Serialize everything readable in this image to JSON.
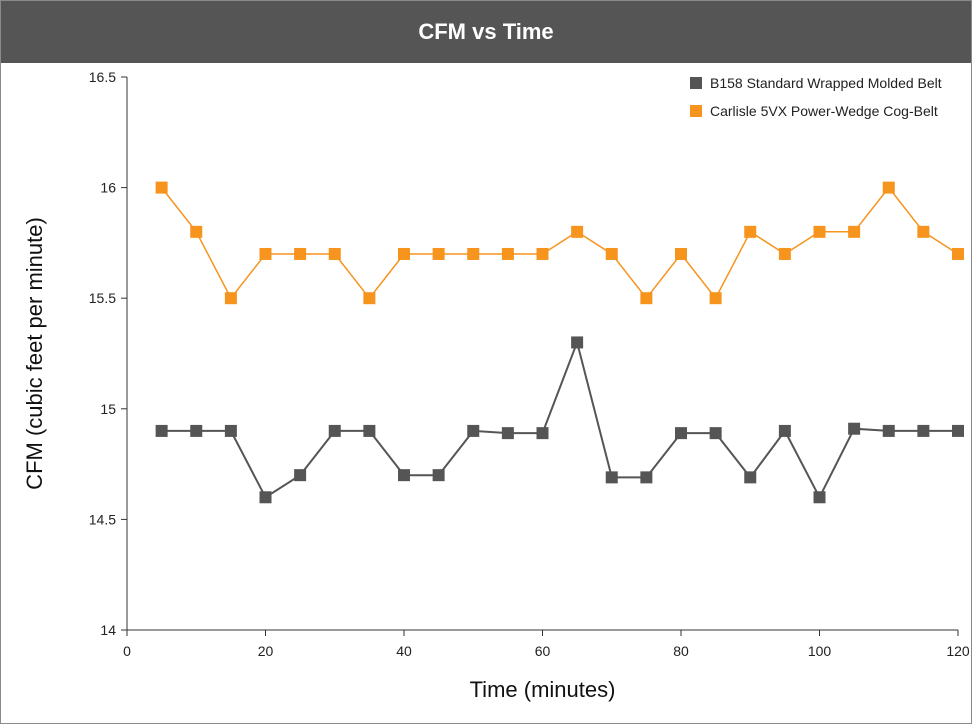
{
  "chart_data": {
    "type": "line",
    "title": "CFM vs Time",
    "xlabel": "Time (minutes)",
    "ylabel": "CFM (cubic feet per minute)",
    "xlim": [
      0,
      120
    ],
    "ylim": [
      14,
      16.5
    ],
    "x_ticks": [
      "0",
      "20",
      "40",
      "60",
      "80",
      "100",
      "120"
    ],
    "y_ticks": [
      "14",
      "14.5",
      "15",
      "15.5",
      "16",
      "16.5"
    ],
    "x_tick_values": [
      0,
      20,
      40,
      60,
      80,
      100,
      120
    ],
    "y_tick_values": [
      14,
      14.5,
      15,
      15.5,
      16,
      16.5
    ],
    "x": [
      5,
      10,
      15,
      20,
      25,
      30,
      35,
      40,
      45,
      50,
      55,
      60,
      65,
      70,
      75,
      80,
      85,
      90,
      95,
      100,
      105,
      110,
      115,
      120
    ],
    "grid": false,
    "legend_position": "top-right",
    "series": [
      {
        "name": "B158 Standard Wrapped Molded Belt",
        "color": "#555555",
        "values": [
          14.9,
          14.9,
          14.9,
          14.6,
          14.7,
          14.9,
          14.9,
          14.7,
          14.7,
          14.9,
          14.89,
          14.89,
          15.3,
          14.69,
          14.69,
          14.89,
          14.89,
          14.69,
          14.9,
          14.6,
          14.91,
          14.9,
          14.9,
          14.9
        ]
      },
      {
        "name": "Carlisle 5VX Power-Wedge Cog-Belt",
        "color": "#f7941d",
        "values": [
          16.0,
          15.8,
          15.5,
          15.7,
          15.7,
          15.7,
          15.5,
          15.7,
          15.7,
          15.7,
          15.7,
          15.7,
          15.8,
          15.7,
          15.5,
          15.7,
          15.5,
          15.8,
          15.7,
          15.8,
          15.8,
          16.0,
          15.8,
          15.7
        ]
      }
    ]
  }
}
